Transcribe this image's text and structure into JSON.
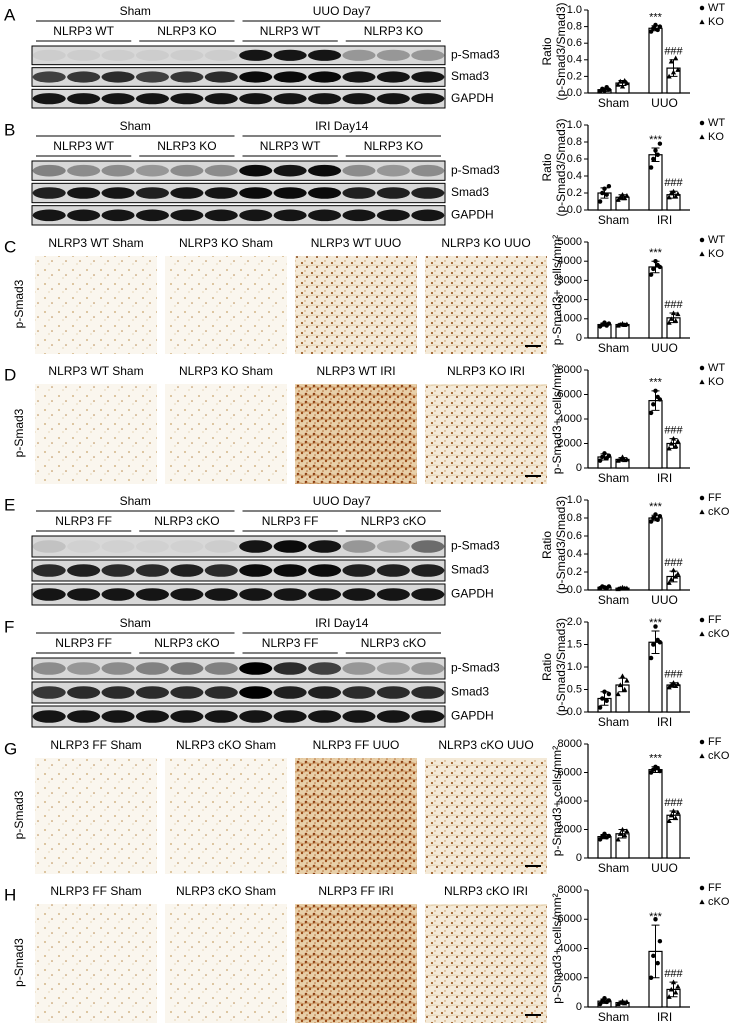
{
  "panels": [
    {
      "letter": "A",
      "groups": [
        "Sham",
        "UUO Day7"
      ],
      "subgroups": [
        "NLRP3 WT",
        "NLRP3 KO",
        "NLRP3 WT",
        "NLRP3 KO"
      ],
      "bands": [
        "p-Smad3",
        "Smad3",
        "GAPDH"
      ]
    },
    {
      "letter": "B",
      "groups": [
        "Sham",
        "IRI Day14"
      ],
      "subgroups": [
        "NLRP3 WT",
        "NLRP3 KO",
        "NLRP3 WT",
        "NLRP3 KO"
      ],
      "bands": [
        "p-Smad3",
        "Smad3",
        "GAPDH"
      ]
    },
    {
      "letter": "C",
      "stain": "p-Smad3",
      "images": [
        "NLRP3 WT Sham",
        "NLRP3 KO Sham",
        "NLRP3 WT UUO",
        "NLRP3 KO UUO"
      ]
    },
    {
      "letter": "D",
      "stain": "p-Smad3",
      "images": [
        "NLRP3 WT Sham",
        "NLRP3 KO Sham",
        "NLRP3 WT IRI",
        "NLRP3 KO IRI"
      ]
    },
    {
      "letter": "E",
      "groups": [
        "Sham",
        "UUO Day7"
      ],
      "subgroups": [
        "NLRP3 FF",
        "NLRP3 cKO",
        "NLRP3 FF",
        "NLRP3 cKO"
      ],
      "bands": [
        "p-Smad3",
        "Smad3",
        "GAPDH"
      ]
    },
    {
      "letter": "F",
      "groups": [
        "Sham",
        "IRI Day14"
      ],
      "subgroups": [
        "NLRP3 FF",
        "NLRP3 cKO",
        "NLRP3 FF",
        "NLRP3 cKO"
      ],
      "bands": [
        "p-Smad3",
        "Smad3",
        "GAPDH"
      ]
    },
    {
      "letter": "G",
      "stain": "p-Smad3",
      "images": [
        "NLRP3 FF Sham",
        "NLRP3 cKO Sham",
        "NLRP3 FF UUO",
        "NLRP3 cKO UUO"
      ]
    },
    {
      "letter": "H",
      "stain": "p-Smad3",
      "images": [
        "NLRP3 FF Sham",
        "NLRP3 cKO Sham",
        "NLRP3 FF IRI",
        "NLRP3 cKO IRI"
      ]
    }
  ],
  "chart_data": [
    {
      "type": "bar",
      "ylabel": [
        "Ratio",
        "(p-Smad3/Smad3)"
      ],
      "categories": [
        "Sham",
        "UUO"
      ],
      "ylim": [
        0,
        1
      ],
      "yticks": [
        {
          "value": 0,
          "label": "0.0"
        },
        0.2,
        0.4,
        0.6,
        0.8,
        {
          "value": 1,
          "label": "1.0"
        }
      ],
      "annotations": [
        "***",
        "###"
      ],
      "series": [
        {
          "name": "WT",
          "marker": "circle",
          "values": [
            0.04,
            0.78
          ],
          "errors": [
            0.02,
            0.03
          ],
          "points": [
            [
              0.02,
              0.05,
              0.03,
              0.07,
              0.04
            ],
            [
              0.74,
              0.78,
              0.82,
              0.76,
              0.8
            ]
          ]
        },
        {
          "name": "KO",
          "marker": "triangle",
          "values": [
            0.12,
            0.3
          ],
          "errors": [
            0.03,
            0.1
          ],
          "points": [
            [
              0.1,
              0.14,
              0.08,
              0.15,
              0.12
            ],
            [
              0.2,
              0.38,
              0.25,
              0.42,
              0.28
            ]
          ]
        }
      ]
    },
    {
      "type": "bar",
      "ylabel": [
        "Ratio",
        "(p-Smad3/Smad3)"
      ],
      "categories": [
        "Sham",
        "IRI"
      ],
      "ylim": [
        0,
        1
      ],
      "yticks": [
        {
          "value": 0,
          "label": "0.0"
        },
        0.2,
        0.4,
        0.6,
        0.8,
        {
          "value": 1,
          "label": "1.0"
        }
      ],
      "annotations": [
        "***",
        "###"
      ],
      "series": [
        {
          "name": "WT",
          "marker": "circle",
          "values": [
            0.2,
            0.65
          ],
          "errors": [
            0.06,
            0.08
          ],
          "points": [
            [
              0.1,
              0.2,
              0.25,
              0.18,
              0.28
            ],
            [
              0.5,
              0.6,
              0.7,
              0.65,
              0.78
            ]
          ]
        },
        {
          "name": "KO",
          "marker": "triangle",
          "values": [
            0.15,
            0.18
          ],
          "errors": [
            0.03,
            0.04
          ],
          "points": [
            [
              0.12,
              0.15,
              0.18,
              0.14,
              0.17
            ],
            [
              0.15,
              0.2,
              0.22,
              0.16,
              0.19
            ]
          ]
        }
      ]
    },
    {
      "type": "bar",
      "ylabel": [
        "p-Smad3+ cells/mm²"
      ],
      "categories": [
        "Sham",
        "UUO"
      ],
      "ylim": [
        0,
        5000
      ],
      "yticks": [
        0,
        1000,
        2000,
        3000,
        4000,
        5000
      ],
      "annotations": [
        "***",
        "###"
      ],
      "series": [
        {
          "name": "WT",
          "marker": "circle",
          "values": [
            700,
            3700
          ],
          "errors": [
            80,
            300
          ],
          "points": [
            [
              600,
              700,
              800,
              650,
              750
            ],
            [
              3300,
              3600,
              4000,
              3800,
              3700
            ]
          ]
        },
        {
          "name": "KO",
          "marker": "triangle",
          "values": [
            700,
            1050
          ],
          "errors": [
            60,
            250
          ],
          "points": [
            [
              650,
              700,
              750,
              680,
              720
            ],
            [
              800,
              1000,
              1300,
              900,
              1250
            ]
          ]
        }
      ]
    },
    {
      "type": "bar",
      "ylabel": [
        "p-Smad3+ cells/mm²"
      ],
      "categories": [
        "Sham",
        "IRI"
      ],
      "ylim": [
        0,
        8000
      ],
      "yticks": [
        0,
        2000,
        4000,
        6000,
        8000
      ],
      "annotations": [
        "***",
        "###"
      ],
      "series": [
        {
          "name": "WT",
          "marker": "circle",
          "values": [
            900,
            5500
          ],
          "errors": [
            250,
            800
          ],
          "points": [
            [
              600,
              900,
              1200,
              800,
              1000
            ],
            [
              4500,
              5200,
              6300,
              5800,
              5600
            ]
          ]
        },
        {
          "name": "KO",
          "marker": "triangle",
          "values": [
            700,
            2000
          ],
          "errors": [
            150,
            400
          ],
          "points": [
            [
              600,
              700,
              900,
              650,
              700
            ],
            [
              1600,
              2000,
              2400,
              1800,
              2200
            ]
          ]
        }
      ]
    },
    {
      "type": "bar",
      "ylabel": [
        "Ratio",
        "(p-Smad3/Smad3)"
      ],
      "categories": [
        "Sham",
        "UUO"
      ],
      "ylim": [
        0,
        1
      ],
      "yticks": [
        {
          "value": 0,
          "label": "0.0"
        },
        0.2,
        0.4,
        0.6,
        0.8,
        {
          "value": 1,
          "label": "1.0"
        }
      ],
      "annotations": [
        "***",
        "###"
      ],
      "series": [
        {
          "name": "FF",
          "marker": "circle",
          "values": [
            0.03,
            0.8
          ],
          "errors": [
            0.01,
            0.03
          ],
          "points": [
            [
              0.02,
              0.04,
              0.03,
              0.02,
              0.04
            ],
            [
              0.76,
              0.8,
              0.84,
              0.78,
              0.82
            ]
          ]
        },
        {
          "name": "cKO",
          "marker": "triangle",
          "values": [
            0.02,
            0.15
          ],
          "errors": [
            0.01,
            0.06
          ],
          "points": [
            [
              0.01,
              0.02,
              0.03,
              0.02,
              0.02
            ],
            [
              0.08,
              0.12,
              0.22,
              0.15,
              0.18
            ]
          ]
        }
      ]
    },
    {
      "type": "bar",
      "ylabel": [
        "Ratio",
        "(p-Smad3/Smad3)"
      ],
      "categories": [
        "Sham",
        "IRI"
      ],
      "ylim": [
        0,
        2
      ],
      "yticks": [
        {
          "value": 0,
          "label": "0.0"
        },
        0.5,
        {
          "value": 1,
          "label": "1.0"
        },
        1.5,
        {
          "value": 2,
          "label": "2.0"
        }
      ],
      "annotations": [
        "***",
        "###"
      ],
      "series": [
        {
          "name": "FF",
          "marker": "circle",
          "values": [
            0.3,
            1.55
          ],
          "errors": [
            0.15,
            0.25
          ],
          "points": [
            [
              0.1,
              0.3,
              0.45,
              0.25,
              0.4
            ],
            [
              1.2,
              1.5,
              1.9,
              1.6,
              1.55
            ]
          ]
        },
        {
          "name": "cKO",
          "marker": "triangle",
          "values": [
            0.6,
            0.6
          ],
          "errors": [
            0.15,
            0.05
          ],
          "points": [
            [
              0.4,
              0.6,
              0.8,
              0.5,
              0.7
            ],
            [
              0.55,
              0.6,
              0.65,
              0.58,
              0.62
            ]
          ]
        }
      ]
    },
    {
      "type": "bar",
      "ylabel": [
        "p-Smad3+ cells/mm²"
      ],
      "categories": [
        "Sham",
        "UUO"
      ],
      "ylim": [
        0,
        8000
      ],
      "yticks": [
        0,
        2000,
        4000,
        6000,
        8000
      ],
      "annotations": [
        "***",
        "###"
      ],
      "series": [
        {
          "name": "FF",
          "marker": "circle",
          "values": [
            1500,
            6200
          ],
          "errors": [
            150,
            200
          ],
          "points": [
            [
              1300,
              1500,
              1700,
              1450,
              1550
            ],
            [
              6000,
              6200,
              6400,
              6300,
              6100
            ]
          ]
        },
        {
          "name": "cKO",
          "marker": "triangle",
          "values": [
            1700,
            3000
          ],
          "errors": [
            300,
            300
          ],
          "points": [
            [
              1300,
              1700,
              2000,
              1600,
              1900
            ],
            [
              2600,
              3000,
              3300,
              2800,
              3200
            ]
          ]
        }
      ]
    },
    {
      "type": "bar",
      "ylabel": [
        "p-Smad3+ cells/mm²"
      ],
      "categories": [
        "Sham",
        "IRI"
      ],
      "ylim": [
        0,
        8000
      ],
      "yticks": [
        0,
        2000,
        4000,
        6000,
        8000
      ],
      "annotations": [
        "***",
        "###"
      ],
      "series": [
        {
          "name": "FF",
          "marker": "circle",
          "values": [
            400,
            3800
          ],
          "errors": [
            150,
            1800
          ],
          "points": [
            [
              200,
              400,
              600,
              350,
              450
            ],
            [
              2000,
              3500,
              6000,
              3000,
              4500
            ]
          ]
        },
        {
          "name": "cKO",
          "marker": "triangle",
          "values": [
            300,
            1200
          ],
          "errors": [
            100,
            500
          ],
          "points": [
            [
              200,
              300,
              400,
              250,
              350
            ],
            [
              700,
              1200,
              1700,
              1000,
              1400
            ]
          ]
        }
      ]
    }
  ]
}
